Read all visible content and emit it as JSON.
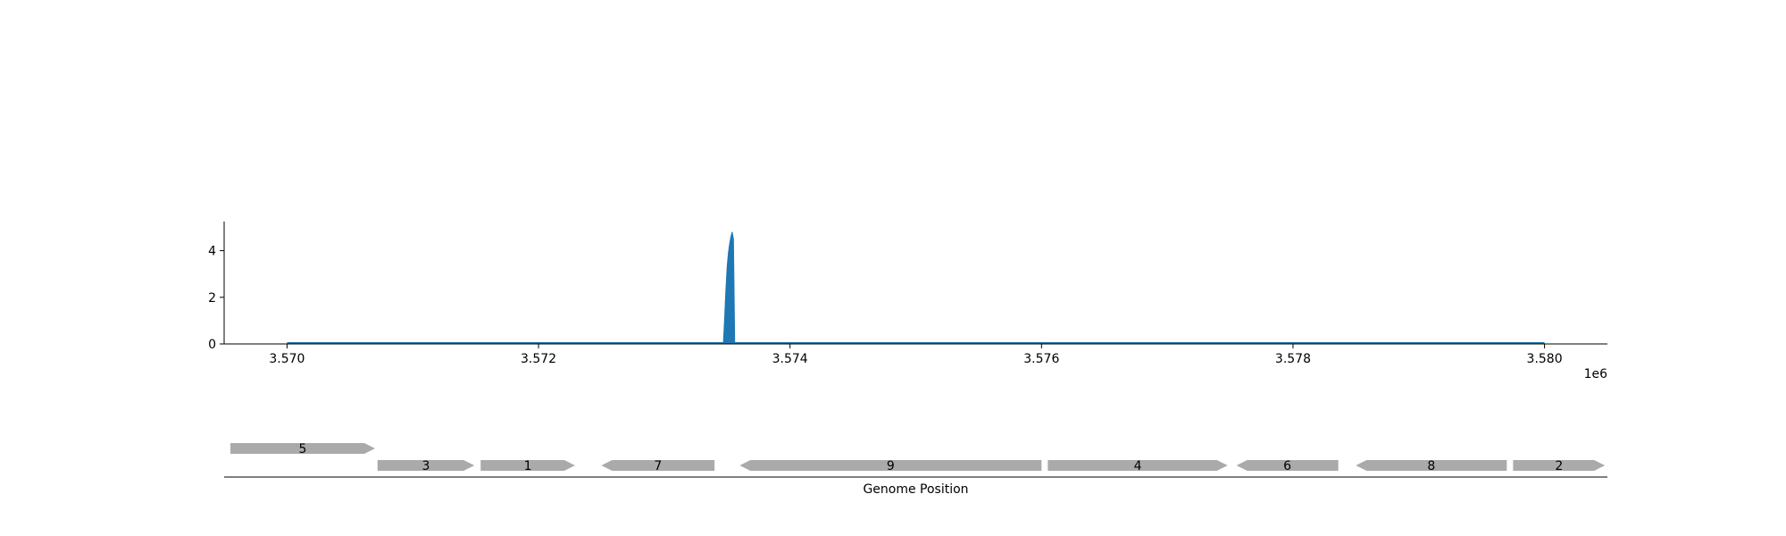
{
  "chart_data": [
    {
      "type": "area",
      "title": "",
      "xlabel": "",
      "ylabel": "",
      "x_offset_label": "1e6",
      "xlim": [
        3569500,
        3580500
      ],
      "ylim": [
        0,
        5.25
      ],
      "x_ticks": [
        3570000,
        3572000,
        3574000,
        3576000,
        3578000,
        3580000
      ],
      "x_tick_labels": [
        "3.570",
        "3.572",
        "3.574",
        "3.576",
        "3.578",
        "3.580"
      ],
      "y_ticks": [
        0,
        2,
        4
      ],
      "y_tick_labels": [
        "0",
        "2",
        "4"
      ],
      "grid": false,
      "color": "#1f77b4",
      "baseline_range": [
        3570000,
        3580000
      ],
      "series": [
        {
          "x": [
            3573470,
            3573480,
            3573490,
            3573500,
            3573510,
            3573520,
            3573530,
            3573540,
            3573550,
            3573560
          ],
          "values": [
            0.0,
            1.1,
            2.3,
            3.3,
            3.9,
            4.3,
            4.6,
            4.8,
            4.5,
            0.0
          ]
        }
      ]
    },
    {
      "type": "gene-track",
      "xlabel": "Genome Position",
      "color": "#aaaaaa",
      "genes": [
        {
          "label": "5",
          "start": 3569550,
          "end": 3570700,
          "strand": "+",
          "row": 1
        },
        {
          "label": "3",
          "start": 3570720,
          "end": 3571490,
          "strand": "+",
          "row": 0
        },
        {
          "label": "1",
          "start": 3571540,
          "end": 3572290,
          "strand": "+",
          "row": 0
        },
        {
          "label": "7",
          "start": 3572500,
          "end": 3573400,
          "strand": "-",
          "row": 0
        },
        {
          "label": "9",
          "start": 3573600,
          "end": 3576000,
          "strand": "-",
          "row": 0
        },
        {
          "label": "4",
          "start": 3576050,
          "end": 3577480,
          "strand": "+",
          "row": 0
        },
        {
          "label": "6",
          "start": 3577550,
          "end": 3578360,
          "strand": "-",
          "row": 0
        },
        {
          "label": "8",
          "start": 3578500,
          "end": 3579700,
          "strand": "-",
          "row": 0
        },
        {
          "label": "2",
          "start": 3579750,
          "end": 3580480,
          "strand": "+",
          "row": 0
        }
      ]
    }
  ]
}
